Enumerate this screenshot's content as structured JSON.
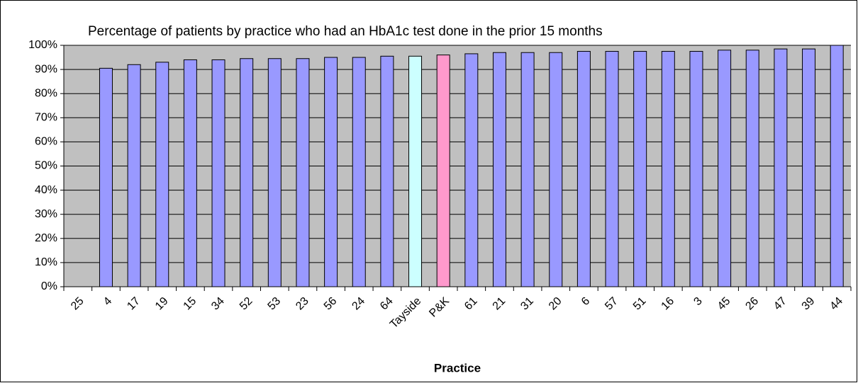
{
  "chart_data": {
    "type": "bar",
    "title": "Percentage of patients by practice who had an HbA1c test done in the prior 15 months",
    "x_label": "Practice",
    "categories": [
      "25",
      "4",
      "17",
      "19",
      "15",
      "34",
      "52",
      "53",
      "23",
      "56",
      "24",
      "64",
      "Tayside",
      "P&K",
      "61",
      "21",
      "31",
      "20",
      "6",
      "57",
      "51",
      "16",
      "3",
      "45",
      "26",
      "47",
      "39",
      "44"
    ],
    "values": [
      null,
      90.5,
      92,
      93,
      94,
      94,
      94.5,
      94.5,
      94.5,
      95,
      95,
      95.5,
      95.5,
      96,
      96.5,
      97,
      97,
      97,
      97.5,
      97.5,
      97.5,
      97.5,
      97.5,
      98,
      98,
      98.5,
      98.5,
      100
    ],
    "colors": [
      "#9999ff",
      "#9999ff",
      "#9999ff",
      "#9999ff",
      "#9999ff",
      "#9999ff",
      "#9999ff",
      "#9999ff",
      "#9999ff",
      "#9999ff",
      "#9999ff",
      "#9999ff",
      "#ccffff",
      "#ff99cc",
      "#9999ff",
      "#9999ff",
      "#9999ff",
      "#9999ff",
      "#9999ff",
      "#9999ff",
      "#9999ff",
      "#9999ff",
      "#9999ff",
      "#9999ff",
      "#9999ff",
      "#9999ff",
      "#9999ff",
      "#9999ff"
    ],
    "ylim": [
      0,
      100
    ],
    "yticks": [
      {
        "value": 0,
        "label": "0%"
      },
      {
        "value": 10,
        "label": "10%"
      },
      {
        "value": 20,
        "label": "20%"
      },
      {
        "value": 30,
        "label": "30%"
      },
      {
        "value": 40,
        "label": "40%"
      },
      {
        "value": 50,
        "label": "50%"
      },
      {
        "value": 60,
        "label": "60%"
      },
      {
        "value": 70,
        "label": "70%"
      },
      {
        "value": 80,
        "label": "80%"
      },
      {
        "value": 90,
        "label": "90%"
      },
      {
        "value": 100,
        "label": "100%"
      }
    ],
    "grid": true
  }
}
